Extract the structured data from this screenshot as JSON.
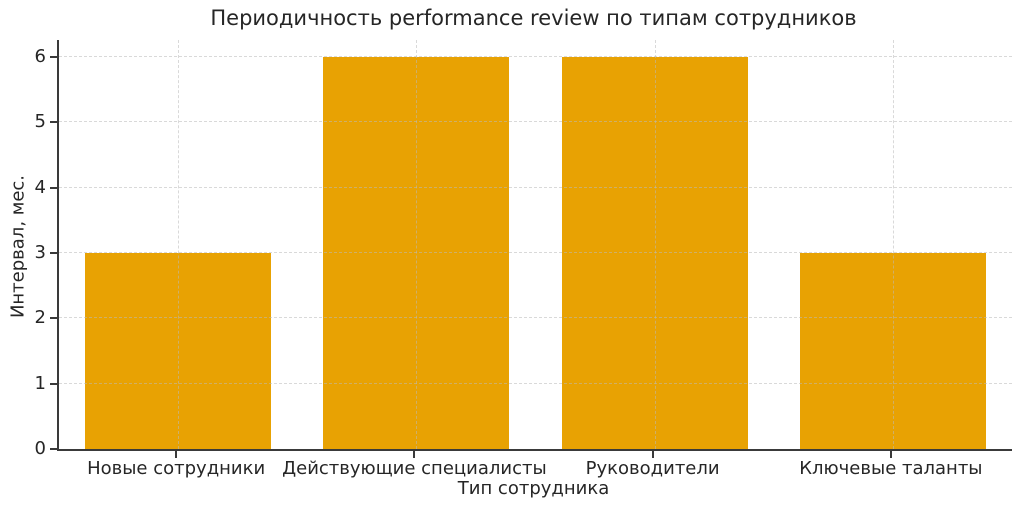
{
  "chart_data": {
    "type": "bar",
    "title": "Периодичность performance review по типам сотрудников",
    "categories": [
      "Новые сотрудники",
      "Действующие специалисты",
      "Руководители",
      "Ключевые таланты"
    ],
    "values": [
      3,
      6,
      6,
      3
    ],
    "xlabel": "Тип сотрудника",
    "ylabel": "Интервал, мес.",
    "yticks": [
      0,
      1,
      2,
      3,
      4,
      5,
      6
    ],
    "ylim": [
      0,
      6.26
    ],
    "bar_color": "#E8A203",
    "bar_width_fraction": 0.78,
    "grid": true,
    "grid_style": "dashed",
    "grid_color": "#e1e1e1",
    "legend_position": "none",
    "text_color": "#262626",
    "spine_color": "#3a3a3a",
    "background_color": "#ffffff"
  }
}
